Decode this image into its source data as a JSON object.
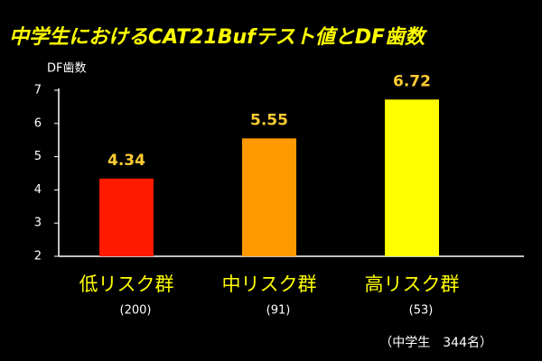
{
  "chart_data": {
    "type": "bar",
    "title": "中学生におけるCAT21Bufテスト値とDF歯数",
    "y_label": "DF歯数",
    "categories": [
      "低リスク群",
      "中リスク群",
      "高リスク群"
    ],
    "category_notes": [
      "(200)",
      "(91)",
      "(53)"
    ],
    "values": [
      4.34,
      5.55,
      6.72
    ],
    "colors": [
      "#ff1a00",
      "#ff9900",
      "#ffff00"
    ],
    "ylim": [
      2,
      7
    ],
    "yticks": [
      2,
      3,
      4,
      5,
      6,
      7
    ],
    "note": "（中学生　344名）"
  }
}
